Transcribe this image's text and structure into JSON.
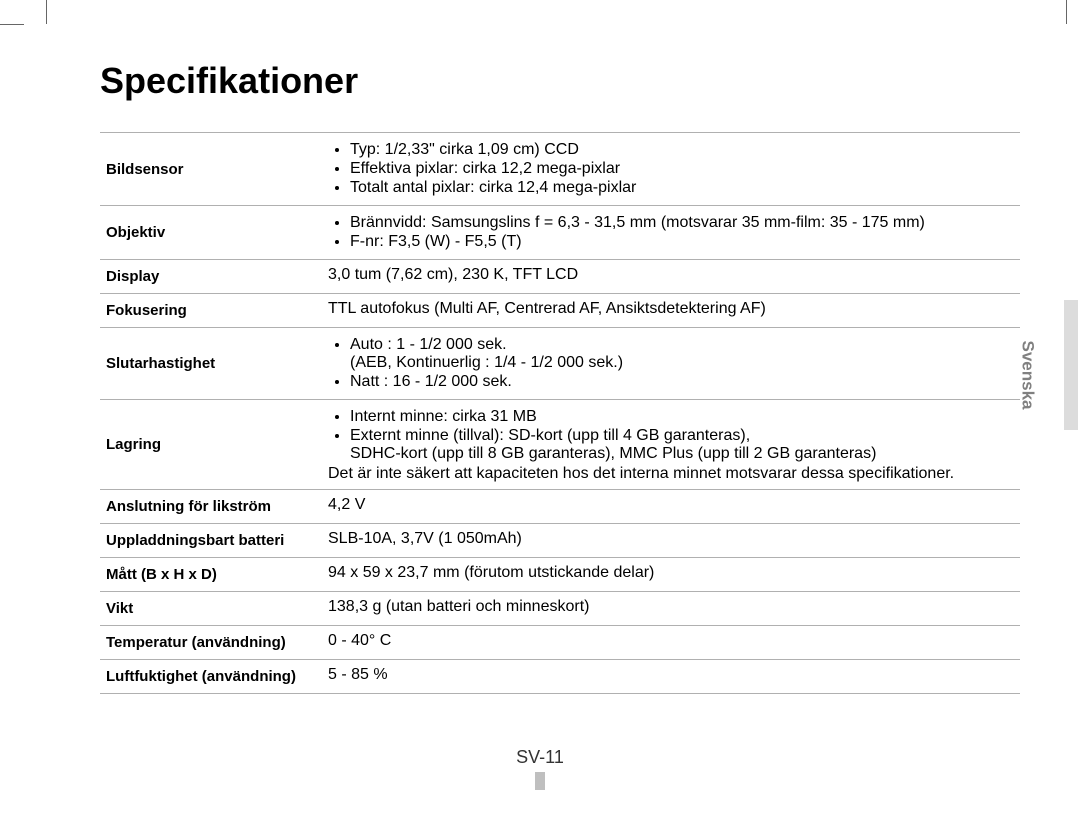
{
  "title": "Specifikationer",
  "language_tab": "Svenska",
  "page_number": "SV-11",
  "rows": {
    "bildsensor": {
      "label": "Bildsensor",
      "items": [
        "Typ: 1/2,33\" cirka 1,09 cm) CCD",
        "Effektiva pixlar: cirka 12,2 mega-pixlar",
        "Totalt antal pixlar: cirka 12,4 mega-pixlar"
      ]
    },
    "objektiv": {
      "label": "Objektiv",
      "items": [
        "Brännvidd: Samsungslins f = 6,3 - 31,5 mm (motsvarar 35 mm-film: 35 - 175 mm)",
        "F-nr: F3,5 (W) - F5,5 (T)"
      ]
    },
    "display": {
      "label": "Display",
      "value": "3,0 tum (7,62 cm), 230 K, TFT LCD"
    },
    "fokusering": {
      "label": "Fokusering",
      "value": "TTL autofokus (Multi AF, Centrerad AF, Ansiktsdetektering AF)"
    },
    "slutarhastighet": {
      "label": "Slutarhastighet",
      "item1": "Auto : 1 - 1/2 000 sek.",
      "item1_sub": "(AEB, Kontinuerlig : 1/4 - 1/2 000 sek.)",
      "item2": "Natt : 16 - 1/2 000 sek."
    },
    "lagring": {
      "label": "Lagring",
      "item1": "Internt minne: cirka 31 MB",
      "item2": "Externt minne (tillval): SD-kort (upp till 4 GB garanteras),",
      "item2_sub": "SDHC-kort (upp till 8 GB garanteras), MMC Plus (upp till 2 GB garanteras)",
      "footnote": "Det är inte säkert att kapaciteten hos det interna minnet motsvarar dessa specifikationer."
    },
    "anslutning": {
      "label": "Anslutning för likström",
      "value": "4,2 V"
    },
    "batteri": {
      "label": "Uppladdningsbart batteri",
      "value": "SLB-10A, 3,7V (1 050mAh)"
    },
    "matt": {
      "label": "Mått (B x H x D)",
      "value": "94 x 59 x 23,7 mm (förutom utstickande delar)"
    },
    "vikt": {
      "label": "Vikt",
      "value": "138,3 g (utan batteri och minneskort)"
    },
    "temperatur": {
      "label": "Temperatur (användning)",
      "value": "0 - 40° C"
    },
    "luftfuktighet": {
      "label": "Luftfuktighet (användning)",
      "value": "5 - 85 %"
    }
  }
}
